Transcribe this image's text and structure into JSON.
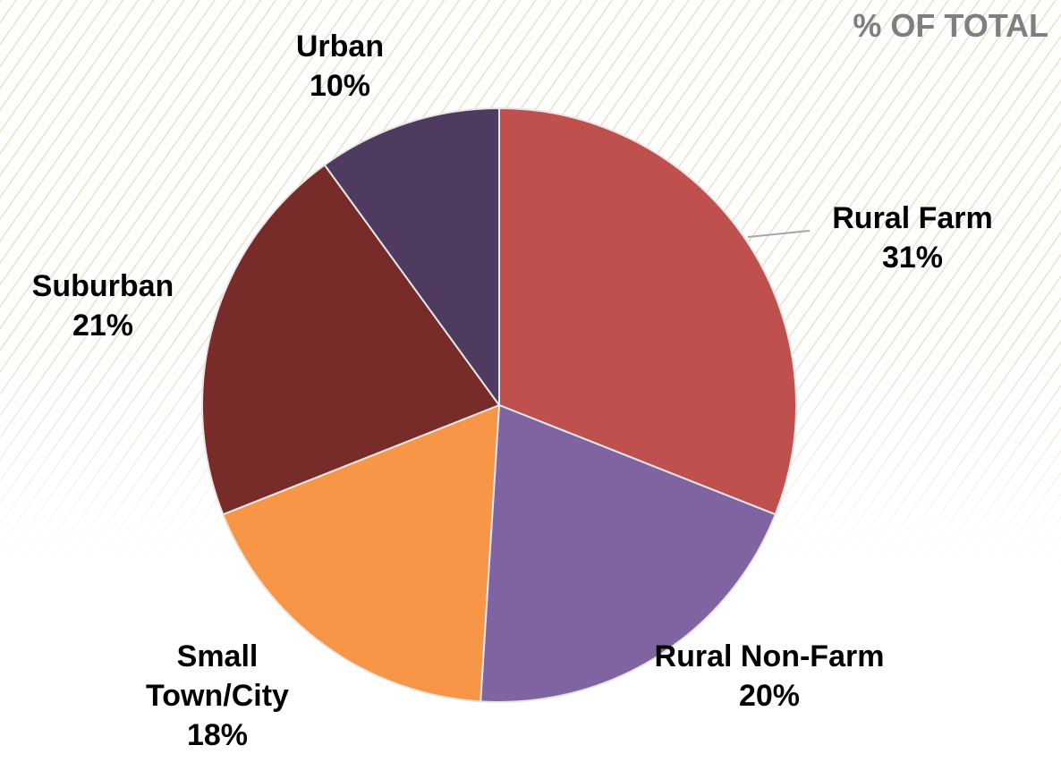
{
  "chart_data": {
    "type": "pie",
    "title": "% OF TOTAL",
    "categories": [
      "Rural Farm",
      "Rural Non-Farm",
      "Small Town/City",
      "Suburban",
      "Urban"
    ],
    "values": [
      31,
      20,
      18,
      21,
      10
    ],
    "value_labels": [
      "31%",
      "20%",
      "18%",
      "21%",
      "10%"
    ],
    "colors": [
      "#c0504d",
      "#8064a2",
      "#f79646",
      "#772c2a",
      "#4f3a60"
    ]
  }
}
